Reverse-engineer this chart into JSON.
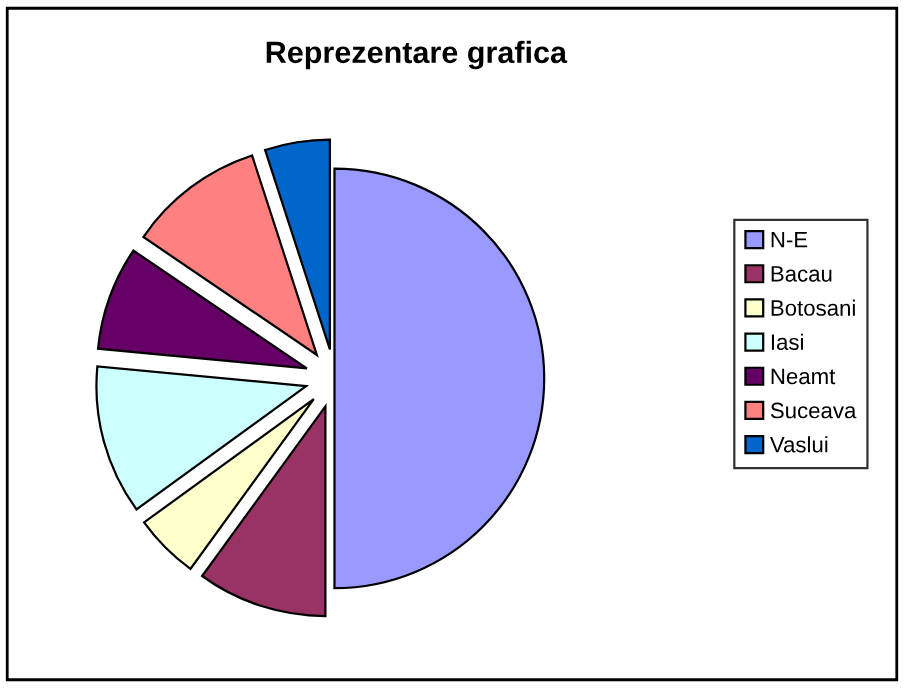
{
  "chart_data": {
    "type": "pie",
    "title": "Reprezentare grafica",
    "categories": [
      "N-E",
      "Bacau",
      "Botosani",
      "Iasi",
      "Neamt",
      "Suceava",
      "Vaslui"
    ],
    "values": [
      50,
      10,
      5,
      11.5,
      8,
      10.5,
      5
    ],
    "colors": [
      "#9999ff",
      "#993366",
      "#ffffcc",
      "#ccffff",
      "#660066",
      "#ff8080",
      "#0066cc"
    ],
    "legend": "right"
  }
}
